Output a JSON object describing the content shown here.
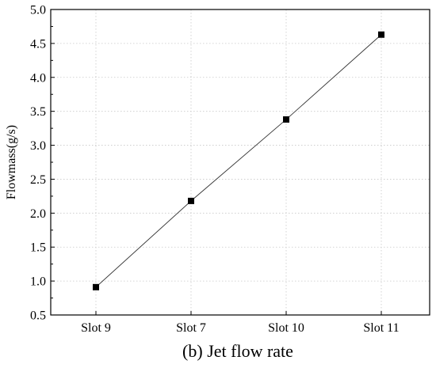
{
  "chart_data": {
    "type": "line",
    "categories": [
      "Slot 9",
      "Slot 7",
      "Slot 10",
      "Slot 11"
    ],
    "values": [
      0.91,
      2.18,
      3.38,
      4.63
    ],
    "ylabel": "Flowmass(g/s)",
    "xlabel": "",
    "ylim": [
      0.5,
      5.0
    ],
    "yticks": [
      "0.5",
      "1.0",
      "1.5",
      "2.0",
      "2.5",
      "3.0",
      "3.5",
      "4.0",
      "4.5",
      "5.0"
    ],
    "grid": true,
    "marker": "square",
    "caption": "(b) Jet flow rate"
  }
}
